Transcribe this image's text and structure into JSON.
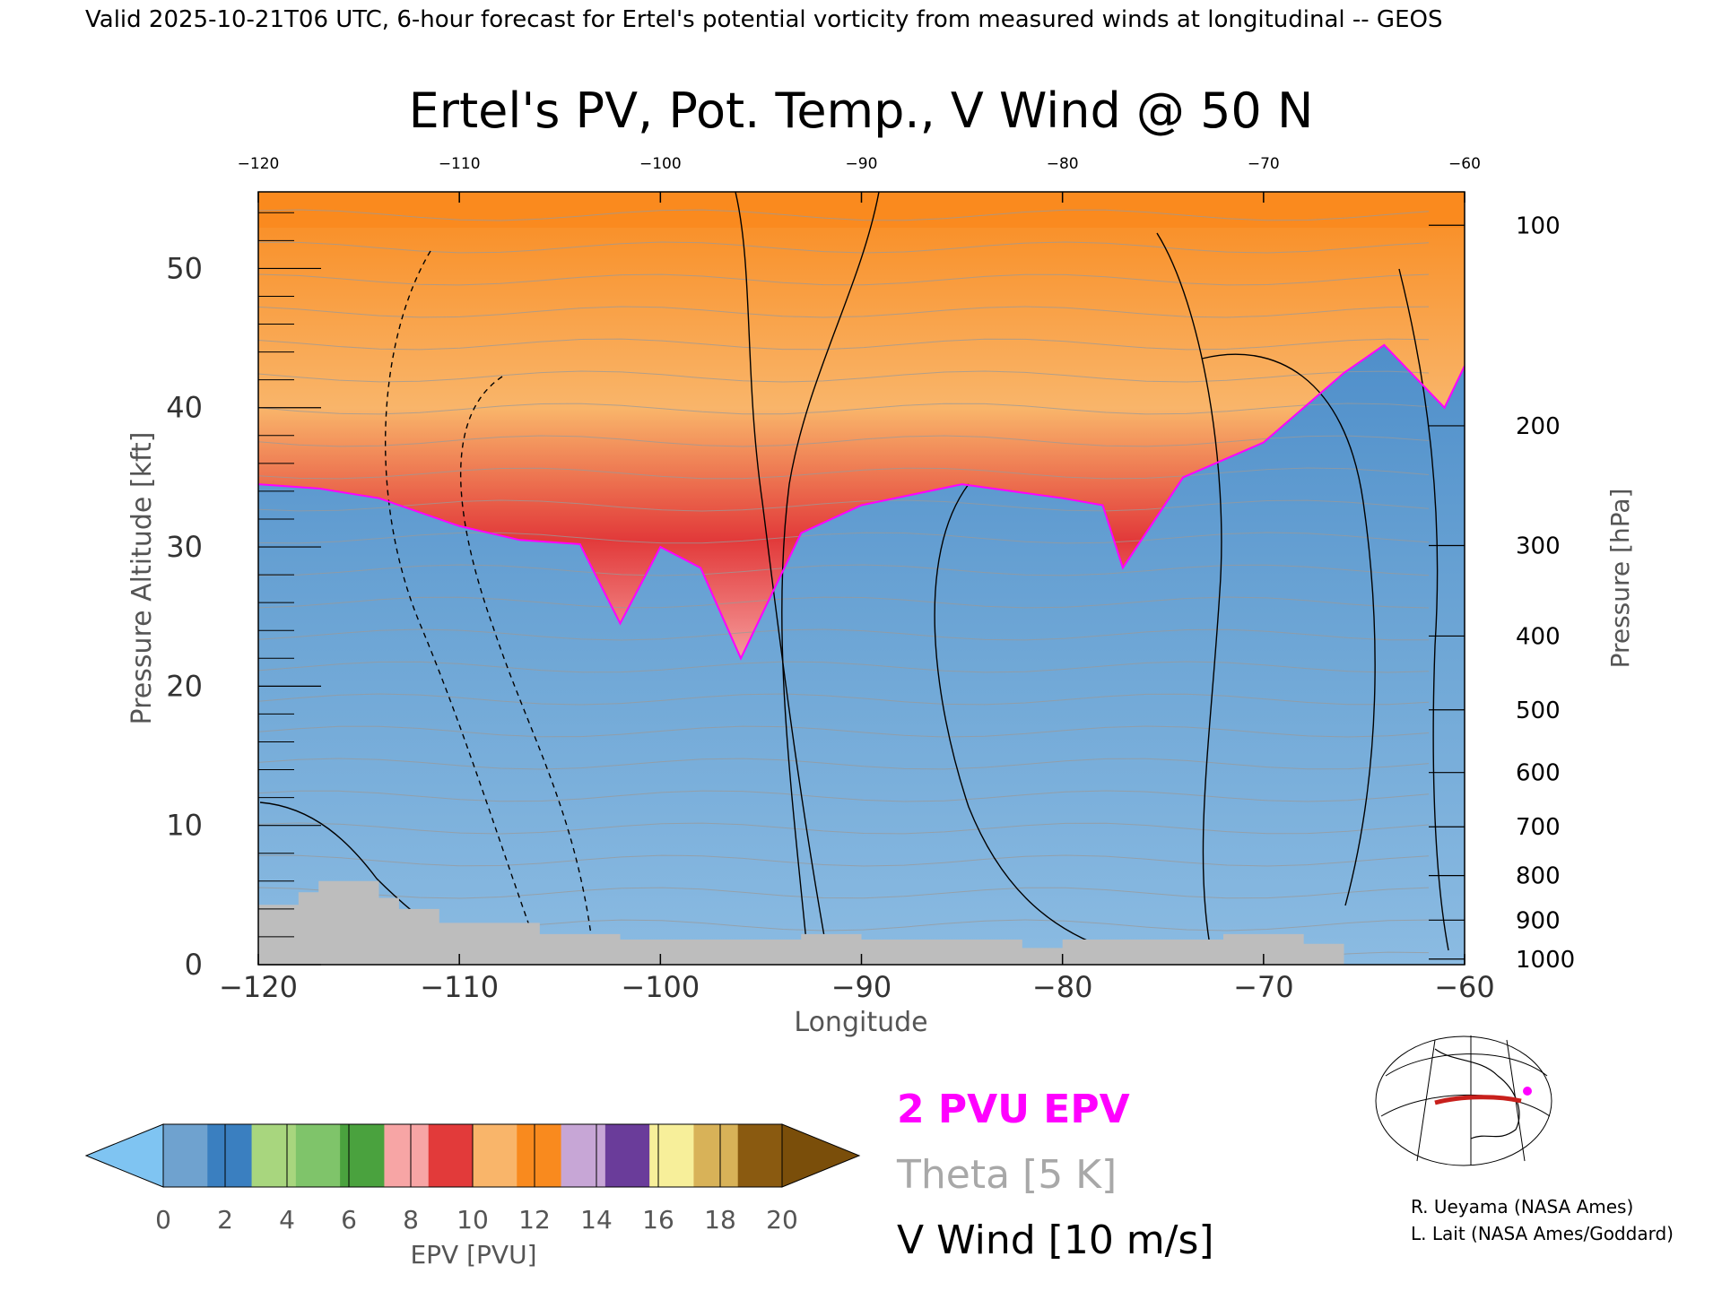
{
  "header": "Valid 2025-10-21T06 UTC, 6-hour forecast for Ertel's potential vorticity from measured winds at longitudinal -- GEOS",
  "chart_data": {
    "type": "heatmap",
    "title": "Ertel's PV, Pot. Temp., V Wind @ 50 N",
    "xlabel": "Longitude",
    "ylabel": "Pressure Altitude [kft]",
    "ylabel_right": "Pressure [hPa]",
    "xlim": [
      -120,
      -60
    ],
    "ylim": [
      0,
      55.5
    ],
    "x_ticks": [
      -120,
      -110,
      -100,
      -90,
      -80,
      -70,
      -60
    ],
    "y_ticks": [
      0,
      10,
      20,
      30,
      40,
      50
    ],
    "pressure_ticks": [
      {
        "hpa": 100,
        "kft": 53.1
      },
      {
        "hpa": 200,
        "kft": 38.7
      },
      {
        "hpa": 300,
        "kft": 30.1
      },
      {
        "hpa": 400,
        "kft": 23.6
      },
      {
        "hpa": 500,
        "kft": 18.3
      },
      {
        "hpa": 600,
        "kft": 13.8
      },
      {
        "hpa": 700,
        "kft": 9.9
      },
      {
        "hpa": 800,
        "kft": 6.4
      },
      {
        "hpa": 900,
        "kft": 3.2
      },
      {
        "hpa": 1000,
        "kft": 0.4
      }
    ],
    "grid": false,
    "colorbar": {
      "label": "EPV [PVU]",
      "ticks": [
        0,
        2,
        4,
        6,
        8,
        10,
        12,
        14,
        16,
        18,
        20
      ],
      "below_color": "#7fc4f2",
      "above_color": "#7a4e0a",
      "colors": [
        "#6fa2cf",
        "#3a7fc0",
        "#a8d67e",
        "#7fc46a",
        "#4aa23e",
        "#f7a5a5",
        "#e23a3a",
        "#f9b56a",
        "#f98a1e",
        "#c7a6d6",
        "#6a3c9a",
        "#f7ef9a",
        "#d8b258",
        "#8a5a10"
      ]
    },
    "tropopause_kft": [
      {
        "lon": -120,
        "kft": 34.5
      },
      {
        "lon": -117,
        "kft": 34.2
      },
      {
        "lon": -114,
        "kft": 33.5
      },
      {
        "lon": -110,
        "kft": 31.5
      },
      {
        "lon": -107,
        "kft": 30.5
      },
      {
        "lon": -104,
        "kft": 30.2
      },
      {
        "lon": -102,
        "kft": 24.5
      },
      {
        "lon": -100,
        "kft": 30.0
      },
      {
        "lon": -98,
        "kft": 28.5
      },
      {
        "lon": -96,
        "kft": 22.0
      },
      {
        "lon": -93,
        "kft": 31.0
      },
      {
        "lon": -90,
        "kft": 33.0
      },
      {
        "lon": -85,
        "kft": 34.5
      },
      {
        "lon": -80,
        "kft": 33.5
      },
      {
        "lon": -78,
        "kft": 33.0
      },
      {
        "lon": -77,
        "kft": 28.5
      },
      {
        "lon": -74,
        "kft": 35.0
      },
      {
        "lon": -70,
        "kft": 37.5
      },
      {
        "lon": -66,
        "kft": 42.5
      },
      {
        "lon": -64,
        "kft": 44.5
      },
      {
        "lon": -61,
        "kft": 40.0
      },
      {
        "lon": -60,
        "kft": 43.0
      }
    ],
    "terrain_kft": [
      {
        "lon": -120,
        "kft": 4.3
      },
      {
        "lon": -118,
        "kft": 4.3
      },
      {
        "lon": -118,
        "kft": 5.2
      },
      {
        "lon": -117,
        "kft": 5.2
      },
      {
        "lon": -117,
        "kft": 6.0
      },
      {
        "lon": -114,
        "kft": 6.0
      },
      {
        "lon": -114,
        "kft": 4.8
      },
      {
        "lon": -113,
        "kft": 4.8
      },
      {
        "lon": -113,
        "kft": 4.0
      },
      {
        "lon": -111,
        "kft": 4.0
      },
      {
        "lon": -111,
        "kft": 3.0
      },
      {
        "lon": -106,
        "kft": 3.0
      },
      {
        "lon": -106,
        "kft": 2.2
      },
      {
        "lon": -102,
        "kft": 2.2
      },
      {
        "lon": -102,
        "kft": 1.8
      },
      {
        "lon": -93,
        "kft": 1.8
      },
      {
        "lon": -93,
        "kft": 2.2
      },
      {
        "lon": -90,
        "kft": 2.2
      },
      {
        "lon": -90,
        "kft": 1.8
      },
      {
        "lon": -82,
        "kft": 1.8
      },
      {
        "lon": -82,
        "kft": 1.2
      },
      {
        "lon": -80,
        "kft": 1.2
      },
      {
        "lon": -80,
        "kft": 1.8
      },
      {
        "lon": -72,
        "kft": 1.8
      },
      {
        "lon": -72,
        "kft": 2.2
      },
      {
        "lon": -68,
        "kft": 2.2
      },
      {
        "lon": -68,
        "kft": 1.5
      },
      {
        "lon": -66,
        "kft": 1.5
      },
      {
        "lon": -66,
        "kft": 0
      }
    ],
    "legend": {
      "epv": "2 PVU EPV",
      "theta": "Theta [5 K]",
      "vwind": "V Wind [10 m/s]",
      "epv_color": "#ff00ff",
      "theta_color": "#a8a8a8",
      "vwind_color": "#000000"
    }
  },
  "credits": [
    "R. Ueyama (NASA Ames)",
    "L. Lait (NASA Ames/Goddard)"
  ]
}
